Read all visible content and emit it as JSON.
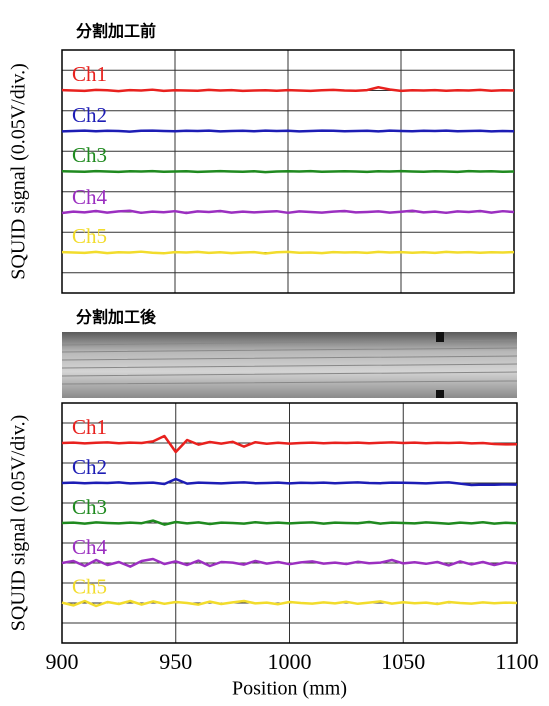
{
  "chart_data": [
    {
      "type": "line",
      "title": "分割加工前",
      "ylabel": "SQUID signal (0.05V/div.)",
      "xlim": [
        900,
        1100
      ],
      "xticks": [
        900,
        950,
        1000,
        1050,
        1100
      ],
      "xtick_labels": false,
      "ylim": [
        0,
        12
      ],
      "yticks": [
        0,
        1,
        2,
        3,
        4,
        5,
        6,
        7,
        8,
        9,
        10,
        11,
        12
      ],
      "ytick_labels": false,
      "grid": true,
      "x": [
        900,
        905,
        910,
        915,
        920,
        925,
        930,
        935,
        940,
        945,
        950,
        955,
        960,
        965,
        970,
        975,
        980,
        985,
        990,
        995,
        1000,
        1005,
        1010,
        1015,
        1020,
        1025,
        1030,
        1035,
        1040,
        1045,
        1050,
        1055,
        1060,
        1065,
        1070,
        1075,
        1080,
        1085,
        1090,
        1095,
        1100
      ],
      "series": [
        {
          "name": "Ch1",
          "color": "#e8211e",
          "values": [
            10.02,
            10,
            9.98,
            10.03,
            10.01,
            9.97,
            10.02,
            10,
            10.04,
            9.98,
            10.01,
            10,
            9.99,
            10.03,
            10,
            10.02,
            9.98,
            10,
            10.01,
            9.99,
            10.02,
            10,
            9.98,
            10.01,
            10.03,
            10,
            9.99,
            10.02,
            10.16,
            10.05,
            9.98,
            10.01,
            10,
            10.02,
            9.99,
            10.01,
            10,
            10.03,
            9.99,
            10.01,
            10
          ]
        },
        {
          "name": "Ch2",
          "color": "#1d1db5",
          "values": [
            7.98,
            8,
            8.02,
            7.99,
            8.01,
            8,
            7.97,
            8.01,
            8.02,
            8,
            7.99,
            8.01,
            8,
            8.02,
            7.98,
            8,
            8.01,
            7.99,
            8.02,
            8,
            8.01,
            7.98,
            8,
            8.02,
            8.01,
            7.99,
            8,
            8.01,
            7.98,
            8.02,
            8,
            7.99,
            8.01,
            8,
            8.02,
            7.99,
            8,
            8.01,
            7.98,
            8,
            7.99
          ]
        },
        {
          "name": "Ch3",
          "color": "#1f8a1f",
          "values": [
            6.01,
            6,
            5.99,
            6.02,
            6,
            5.98,
            6.01,
            6,
            6.02,
            5.99,
            6,
            6.01,
            5.98,
            6,
            6.02,
            6,
            5.99,
            6.01,
            5.97,
            6,
            6.01,
            6,
            6.02,
            5.99,
            6,
            6.01,
            6,
            5.98,
            6.01,
            6,
            6.02,
            6,
            5.99,
            6.01,
            6,
            5.98,
            6.02,
            6,
            6.01,
            5.99,
            6
          ]
        },
        {
          "name": "Ch4",
          "color": "#9b2fc0",
          "values": [
            3.95,
            4.02,
            3.98,
            4.05,
            3.97,
            4.03,
            4.06,
            3.96,
            4.02,
            3.99,
            4.04,
            3.95,
            4.03,
            4,
            4.05,
            3.97,
            4.02,
            3.98,
            4.01,
            4.04,
            3.96,
            4.03,
            4,
            3.97,
            4.02,
            4.05,
            3.98,
            4,
            4.03,
            3.97,
            4.01,
            4.06,
            3.98,
            4.02,
            3.96,
            4.03,
            4,
            4.05,
            3.97,
            4.04,
            4
          ]
        },
        {
          "name": "Ch5",
          "color": "#f2dc2c",
          "values": [
            2.02,
            2,
            1.98,
            2.03,
            1.97,
            2.01,
            2,
            2.04,
            1.99,
            1.96,
            2.02,
            2,
            2.03,
            1.98,
            2.01,
            1.97,
            2,
            2.02,
            1.95,
            2.01,
            2.03,
            1.99,
            2,
            1.97,
            2.02,
            2,
            2.01,
            1.98,
            2.03,
            2,
            2.02,
            1.99,
            2.01,
            1.98,
            2.03,
            2,
            2.02,
            1.99,
            2.01,
            2,
            2.02
          ]
        }
      ]
    },
    {
      "type": "line",
      "title": "分割加工後",
      "ylabel": "SQUID signal (0.05V/div.)",
      "xlabel": "Position (mm)",
      "xlim": [
        900,
        1100
      ],
      "xticks": [
        900,
        950,
        1000,
        1050,
        1100
      ],
      "xtick_labels": true,
      "ylim": [
        0,
        12
      ],
      "yticks": [
        0,
        1,
        2,
        3,
        4,
        5,
        6,
        7,
        8,
        9,
        10,
        11,
        12
      ],
      "ytick_labels": false,
      "grid": true,
      "x": [
        900,
        905,
        910,
        915,
        920,
        925,
        930,
        935,
        940,
        945,
        950,
        955,
        960,
        965,
        970,
        975,
        980,
        985,
        990,
        995,
        1000,
        1005,
        1010,
        1015,
        1020,
        1025,
        1030,
        1035,
        1040,
        1045,
        1050,
        1055,
        1060,
        1065,
        1070,
        1075,
        1080,
        1085,
        1090,
        1095,
        1100
      ],
      "series": [
        {
          "name": "Ch1",
          "color": "#e8211e",
          "values": [
            10,
            10.02,
            9.98,
            10.01,
            10.03,
            9.99,
            10.02,
            10,
            10.08,
            10.35,
            9.55,
            10.15,
            9.92,
            10.05,
            9.97,
            10.06,
            9.82,
            10.04,
            9.96,
            10.01,
            9.97,
            10,
            10.02,
            9.99,
            10.01,
            10,
            10.02,
            9.99,
            10.01,
            10.03,
            10,
            10.02,
            9.99,
            10.01,
            10,
            10.02,
            9.98,
            10,
            9.95,
            9.93,
            9.94
          ]
        },
        {
          "name": "Ch2",
          "color": "#1d1db5",
          "values": [
            8,
            8.02,
            7.99,
            8.01,
            8,
            8.03,
            7.98,
            8,
            8.02,
            7.95,
            8.2,
            7.97,
            8.02,
            8,
            7.98,
            8.01,
            8.03,
            7.99,
            8,
            8.02,
            7.98,
            8.01,
            8,
            8.02,
            7.99,
            8.01,
            8.03,
            8,
            7.99,
            8.02,
            8.01,
            8,
            7.98,
            8.01,
            8.03,
            7.97,
            7.9,
            7.92,
            7.91,
            7.93,
            7.92
          ]
        },
        {
          "name": "Ch3",
          "color": "#1f8a1f",
          "values": [
            6,
            6.02,
            5.97,
            6.03,
            6,
            5.98,
            6.02,
            5.99,
            6.12,
            5.92,
            6.05,
            5.98,
            6.03,
            5.95,
            6.02,
            6,
            5.97,
            6.04,
            5.99,
            6.02,
            5.98,
            6.01,
            6.03,
            5.97,
            6.02,
            6,
            5.99,
            6.05,
            5.97,
            6.02,
            6,
            5.98,
            6.03,
            6,
            5.96,
            6.02,
            5.98,
            6.04,
            5.97,
            6.01,
            5.99
          ]
        },
        {
          "name": "Ch4",
          "color": "#9b2fc0",
          "values": [
            4,
            4.1,
            3.85,
            4.15,
            3.9,
            4.05,
            3.82,
            4.1,
            4.2,
            3.95,
            4.08,
            3.9,
            4.12,
            3.85,
            4.05,
            4.02,
            3.92,
            4.1,
            3.97,
            4.05,
            3.94,
            4.03,
            4.08,
            3.97,
            4.02,
            3.95,
            4.06,
            3.99,
            4.02,
            4.15,
            3.98,
            4.04,
            3.96,
            4.05,
            3.88,
            4.08,
            3.93,
            4.05,
            3.9,
            4.03,
            3.98
          ]
        },
        {
          "name": "Ch5",
          "color": "#f2dc2c",
          "values": [
            2.02,
            1.88,
            2.1,
            1.85,
            2.05,
            1.95,
            2.1,
            1.92,
            2.08,
            1.96,
            2.05,
            2,
            1.92,
            2.07,
            1.95,
            2.03,
            2.1,
            1.98,
            2.02,
            1.94,
            2.05,
            2,
            1.97,
            2.03,
            1.98,
            2.06,
            1.96,
            2.02,
            2.08,
            1.97,
            2.04,
            1.99,
            2.02,
            1.95,
            2.05,
            2,
            1.97,
            2.03,
            1.99,
            2.02,
            2
          ]
        }
      ]
    }
  ]
}
